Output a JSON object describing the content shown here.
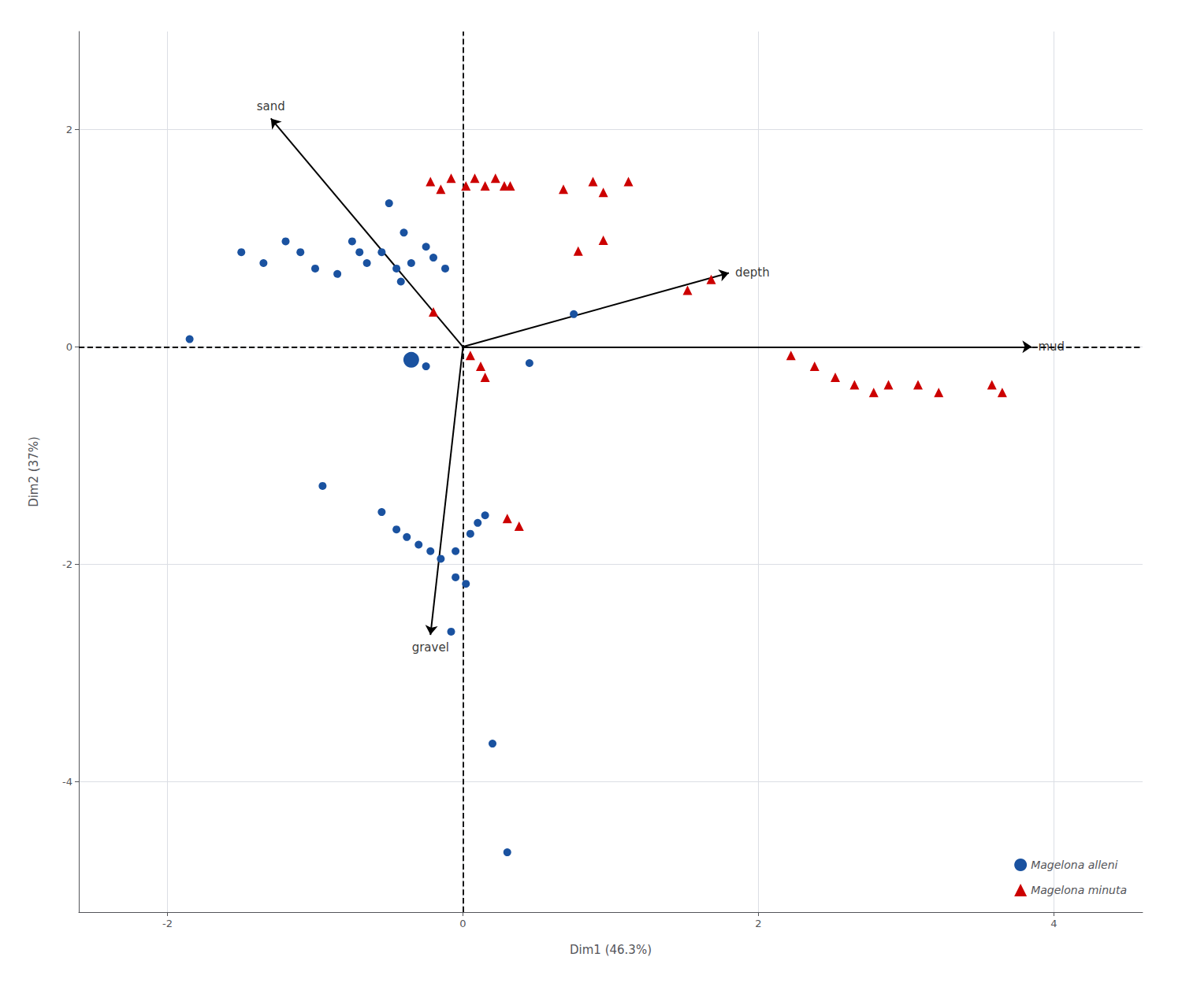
{
  "chart_data": {
    "type": "scatter",
    "xlabel": "Dim1 (46.3%)",
    "ylabel": "Dim2 (37%)",
    "xlim": [
      -2.6,
      4.6
    ],
    "ylim": [
      -5.2,
      2.9
    ],
    "xticks": [
      -2,
      0,
      2,
      4
    ],
    "yticks": [
      -4,
      -2,
      0,
      2
    ],
    "grid": true,
    "legend": "lower right",
    "reference_lines": [
      {
        "axis": "x",
        "value": 0,
        "line_style": "dashed"
      },
      {
        "axis": "y",
        "value": 0,
        "line_style": "dashed"
      }
    ],
    "arrows": [
      {
        "label": "sand",
        "start": [
          0,
          0
        ],
        "end": [
          -1.3,
          2.1
        ]
      },
      {
        "label": "mud",
        "start": [
          0,
          0
        ],
        "end": [
          3.85,
          0.0
        ]
      },
      {
        "label": "depth",
        "start": [
          0,
          0
        ],
        "end": [
          1.8,
          0.68
        ]
      },
      {
        "label": "gravel",
        "start": [
          0,
          0
        ],
        "end": [
          -0.22,
          -2.65
        ]
      }
    ],
    "series": [
      {
        "name": "Magelona alleni",
        "color": "#1a52a0",
        "marker": "circle",
        "highlight": [
          -0.35,
          -0.12
        ],
        "values": [
          [
            -1.85,
            0.07
          ],
          [
            -1.5,
            0.87
          ],
          [
            -1.35,
            0.77
          ],
          [
            -1.2,
            0.97
          ],
          [
            -1.1,
            0.87
          ],
          [
            -1.0,
            0.72
          ],
          [
            -0.85,
            0.67
          ],
          [
            -0.75,
            0.97
          ],
          [
            -0.7,
            0.87
          ],
          [
            -0.65,
            0.77
          ],
          [
            -0.55,
            0.87
          ],
          [
            -0.45,
            0.72
          ],
          [
            -0.42,
            0.6
          ],
          [
            -0.35,
            0.77
          ],
          [
            -0.25,
            0.92
          ],
          [
            -0.2,
            0.82
          ],
          [
            -0.12,
            0.72
          ],
          [
            -0.5,
            1.32
          ],
          [
            -0.4,
            1.05
          ],
          [
            0.75,
            0.3
          ],
          [
            -0.25,
            -0.18
          ],
          [
            0.45,
            -0.15
          ],
          [
            -0.95,
            -1.28
          ],
          [
            -0.55,
            -1.52
          ],
          [
            -0.45,
            -1.68
          ],
          [
            -0.38,
            -1.75
          ],
          [
            -0.3,
            -1.82
          ],
          [
            -0.22,
            -1.88
          ],
          [
            -0.15,
            -1.95
          ],
          [
            -0.05,
            -1.88
          ],
          [
            0.05,
            -1.72
          ],
          [
            0.1,
            -1.62
          ],
          [
            0.15,
            -1.55
          ],
          [
            -0.05,
            -2.12
          ],
          [
            0.02,
            -2.18
          ],
          [
            -0.08,
            -2.62
          ],
          [
            0.2,
            -3.65
          ],
          [
            0.3,
            -4.65
          ],
          [
            -0.35,
            -0.12
          ]
        ]
      },
      {
        "name": "Magelona minuta",
        "color": "#cc0000",
        "marker": "triangle",
        "values": [
          [
            -0.22,
            1.52
          ],
          [
            -0.15,
            1.45
          ],
          [
            -0.08,
            1.55
          ],
          [
            0.02,
            1.48
          ],
          [
            0.08,
            1.55
          ],
          [
            0.15,
            1.48
          ],
          [
            0.22,
            1.55
          ],
          [
            0.28,
            1.48
          ],
          [
            0.32,
            1.48
          ],
          [
            -0.2,
            0.32
          ],
          [
            0.68,
            1.45
          ],
          [
            0.88,
            1.52
          ],
          [
            0.95,
            1.42
          ],
          [
            1.12,
            1.52
          ],
          [
            0.78,
            0.88
          ],
          [
            0.95,
            0.98
          ],
          [
            1.52,
            0.52
          ],
          [
            1.68,
            0.62
          ],
          [
            0.05,
            -0.08
          ],
          [
            0.12,
            -0.18
          ],
          [
            0.15,
            -0.28
          ],
          [
            0.3,
            -1.58
          ],
          [
            0.38,
            -1.65
          ],
          [
            2.22,
            -0.08
          ],
          [
            2.38,
            -0.18
          ],
          [
            2.52,
            -0.28
          ],
          [
            2.65,
            -0.35
          ],
          [
            2.78,
            -0.42
          ],
          [
            2.88,
            -0.35
          ],
          [
            3.08,
            -0.35
          ],
          [
            3.22,
            -0.42
          ],
          [
            3.58,
            -0.35
          ],
          [
            3.65,
            -0.42
          ]
        ]
      }
    ]
  }
}
